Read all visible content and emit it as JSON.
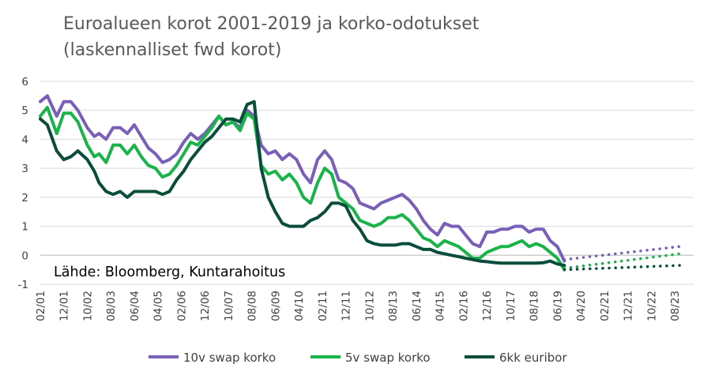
{
  "chart_data": {
    "type": "line",
    "title_line1": "Euroalueen korot 2001-2019 ja korko-odotukset",
    "title_line2": "(laskennalliset fwd korot)",
    "source": "Lähde: Bloomberg, Kuntarahoitus",
    "xlabel": "",
    "ylabel": "",
    "ylim": [
      -1,
      6
    ],
    "yticks": [
      "-1",
      "0",
      "1",
      "2",
      "3",
      "4",
      "5",
      "6"
    ],
    "xlim": [
      "2001-02",
      "2024-04"
    ],
    "xticks": [
      "02/01",
      "12/01",
      "10/02",
      "08/03",
      "06/04",
      "04/05",
      "02/06",
      "12/06",
      "10/07",
      "08/08",
      "06/09",
      "04/10",
      "02/11",
      "12/11",
      "10/12",
      "08/13",
      "06/14",
      "04/15",
      "02/16",
      "12/16",
      "10/17",
      "08/18",
      "06/19",
      "04/20",
      "02/21",
      "12/21",
      "10/22",
      "08/23"
    ],
    "grid": true,
    "legend_position": "bottom",
    "colors": {
      "swap10": "#7a5fb8",
      "swap5": "#19b34a",
      "euribor6": "#0b4d3d",
      "grid": "#d9d9d9"
    },
    "series": [
      {
        "name": "10v swap korko",
        "color": "#7a5fb8",
        "x": [
          "2001-02",
          "2001-05",
          "2001-09",
          "2001-12",
          "2002-03",
          "2002-06",
          "2002-10",
          "2003-01",
          "2003-03",
          "2003-06",
          "2003-09",
          "2003-12",
          "2004-03",
          "2004-06",
          "2004-09",
          "2004-12",
          "2005-03",
          "2005-06",
          "2005-09",
          "2005-12",
          "2006-03",
          "2006-06",
          "2006-09",
          "2006-12",
          "2007-03",
          "2007-06",
          "2007-09",
          "2007-12",
          "2008-03",
          "2008-06",
          "2008-09",
          "2008-12",
          "2009-03",
          "2009-06",
          "2009-09",
          "2009-12",
          "2010-03",
          "2010-06",
          "2010-09",
          "2010-12",
          "2011-03",
          "2011-06",
          "2011-09",
          "2011-12",
          "2012-03",
          "2012-06",
          "2012-09",
          "2012-12",
          "2013-03",
          "2013-06",
          "2013-09",
          "2013-12",
          "2014-03",
          "2014-06",
          "2014-09",
          "2014-12",
          "2015-03",
          "2015-06",
          "2015-09",
          "2015-12",
          "2016-03",
          "2016-06",
          "2016-09",
          "2016-12",
          "2017-03",
          "2017-06",
          "2017-09",
          "2017-12",
          "2018-03",
          "2018-06",
          "2018-09",
          "2018-12",
          "2019-03",
          "2019-06",
          "2019-09"
        ],
        "values": [
          5.3,
          5.5,
          4.8,
          5.3,
          5.3,
          5.0,
          4.4,
          4.1,
          4.2,
          4.0,
          4.4,
          4.4,
          4.2,
          4.5,
          4.1,
          3.7,
          3.5,
          3.2,
          3.3,
          3.5,
          3.9,
          4.2,
          4.0,
          4.2,
          4.5,
          4.8,
          4.5,
          4.6,
          4.4,
          5.0,
          4.8,
          3.8,
          3.5,
          3.6,
          3.3,
          3.5,
          3.3,
          2.8,
          2.5,
          3.3,
          3.6,
          3.3,
          2.6,
          2.5,
          2.3,
          1.8,
          1.7,
          1.6,
          1.8,
          1.9,
          2.0,
          2.1,
          1.9,
          1.6,
          1.2,
          0.9,
          0.7,
          1.1,
          1.0,
          1.0,
          0.7,
          0.4,
          0.3,
          0.8,
          0.8,
          0.9,
          0.9,
          1.0,
          1.0,
          0.8,
          0.9,
          0.9,
          0.5,
          0.3,
          -0.2
        ]
      },
      {
        "name": "5v swap korko",
        "color": "#19b34a",
        "x": [
          "2001-02",
          "2001-05",
          "2001-09",
          "2001-12",
          "2002-03",
          "2002-06",
          "2002-10",
          "2003-01",
          "2003-03",
          "2003-06",
          "2003-09",
          "2003-12",
          "2004-03",
          "2004-06",
          "2004-09",
          "2004-12",
          "2005-03",
          "2005-06",
          "2005-09",
          "2005-12",
          "2006-03",
          "2006-06",
          "2006-09",
          "2006-12",
          "2007-03",
          "2007-06",
          "2007-09",
          "2007-12",
          "2008-03",
          "2008-06",
          "2008-09",
          "2008-12",
          "2009-03",
          "2009-06",
          "2009-09",
          "2009-12",
          "2010-03",
          "2010-06",
          "2010-09",
          "2010-12",
          "2011-03",
          "2011-06",
          "2011-09",
          "2011-12",
          "2012-03",
          "2012-06",
          "2012-09",
          "2012-12",
          "2013-03",
          "2013-06",
          "2013-09",
          "2013-12",
          "2014-03",
          "2014-06",
          "2014-09",
          "2014-12",
          "2015-03",
          "2015-06",
          "2015-09",
          "2015-12",
          "2016-03",
          "2016-06",
          "2016-09",
          "2016-12",
          "2017-03",
          "2017-06",
          "2017-09",
          "2017-12",
          "2018-03",
          "2018-06",
          "2018-09",
          "2018-12",
          "2019-03",
          "2019-06",
          "2019-09"
        ],
        "values": [
          4.8,
          5.1,
          4.2,
          4.9,
          4.9,
          4.6,
          3.8,
          3.4,
          3.5,
          3.2,
          3.8,
          3.8,
          3.5,
          3.8,
          3.4,
          3.1,
          3.0,
          2.7,
          2.8,
          3.1,
          3.5,
          3.9,
          3.8,
          4.1,
          4.4,
          4.8,
          4.5,
          4.6,
          4.3,
          4.9,
          4.7,
          3.1,
          2.8,
          2.9,
          2.6,
          2.8,
          2.5,
          2.0,
          1.8,
          2.5,
          3.0,
          2.8,
          2.0,
          1.8,
          1.6,
          1.2,
          1.1,
          1.0,
          1.1,
          1.3,
          1.3,
          1.4,
          1.2,
          0.9,
          0.6,
          0.5,
          0.3,
          0.5,
          0.4,
          0.3,
          0.1,
          -0.1,
          -0.1,
          0.1,
          0.2,
          0.3,
          0.3,
          0.4,
          0.5,
          0.3,
          0.4,
          0.3,
          0.1,
          -0.1,
          -0.5
        ]
      },
      {
        "name": "6kk euribor",
        "color": "#0b4d3d",
        "x": [
          "2001-02",
          "2001-05",
          "2001-09",
          "2001-12",
          "2002-03",
          "2002-06",
          "2002-10",
          "2003-01",
          "2003-03",
          "2003-06",
          "2003-09",
          "2003-12",
          "2004-03",
          "2004-06",
          "2004-09",
          "2004-12",
          "2005-03",
          "2005-06",
          "2005-09",
          "2005-12",
          "2006-03",
          "2006-06",
          "2006-09",
          "2006-12",
          "2007-03",
          "2007-06",
          "2007-09",
          "2007-12",
          "2008-03",
          "2008-06",
          "2008-09",
          "2008-12",
          "2009-03",
          "2009-06",
          "2009-09",
          "2009-12",
          "2010-03",
          "2010-06",
          "2010-09",
          "2010-12",
          "2011-03",
          "2011-06",
          "2011-09",
          "2011-12",
          "2012-03",
          "2012-06",
          "2012-09",
          "2012-12",
          "2013-03",
          "2013-06",
          "2013-09",
          "2013-12",
          "2014-03",
          "2014-06",
          "2014-09",
          "2014-12",
          "2015-03",
          "2015-06",
          "2015-09",
          "2015-12",
          "2016-03",
          "2016-06",
          "2016-09",
          "2016-12",
          "2017-03",
          "2017-06",
          "2017-09",
          "2017-12",
          "2018-03",
          "2018-06",
          "2018-09",
          "2018-12",
          "2019-03",
          "2019-06",
          "2019-09"
        ],
        "values": [
          4.7,
          4.5,
          3.6,
          3.3,
          3.4,
          3.6,
          3.3,
          2.9,
          2.5,
          2.2,
          2.1,
          2.2,
          2.0,
          2.2,
          2.2,
          2.2,
          2.2,
          2.1,
          2.2,
          2.6,
          2.9,
          3.3,
          3.6,
          3.9,
          4.1,
          4.4,
          4.7,
          4.7,
          4.6,
          5.2,
          5.3,
          3.0,
          2.0,
          1.5,
          1.1,
          1.0,
          1.0,
          1.0,
          1.2,
          1.3,
          1.5,
          1.8,
          1.8,
          1.7,
          1.2,
          0.9,
          0.5,
          0.4,
          0.35,
          0.35,
          0.35,
          0.4,
          0.4,
          0.3,
          0.2,
          0.2,
          0.1,
          0.05,
          0.0,
          -0.05,
          -0.1,
          -0.15,
          -0.2,
          -0.22,
          -0.25,
          -0.27,
          -0.27,
          -0.27,
          -0.27,
          -0.27,
          -0.27,
          -0.26,
          -0.2,
          -0.3,
          -0.35
        ]
      }
    ],
    "forecast": [
      {
        "series": "10v swap korko",
        "x": [
          "2019-09",
          "2023-10"
        ],
        "values": [
          -0.15,
          0.3
        ]
      },
      {
        "series": "5v swap korko",
        "x": [
          "2019-09",
          "2023-10"
        ],
        "values": [
          -0.45,
          0.05
        ]
      },
      {
        "series": "6kk euribor",
        "x": [
          "2019-09",
          "2023-10"
        ],
        "values": [
          -0.5,
          -0.35
        ]
      }
    ]
  }
}
